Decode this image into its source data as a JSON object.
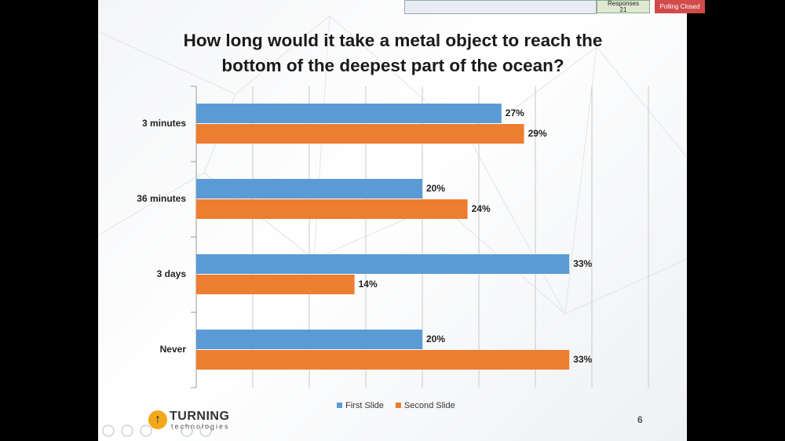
{
  "toolbar": {
    "responses_label": "Responses",
    "responses_count": "21",
    "polling_status": "Polling Closed"
  },
  "chart_data": {
    "type": "bar",
    "orientation": "horizontal",
    "title": "How long would it take a metal object to reach the bottom of the deepest part of the ocean?",
    "categories": [
      "3 minutes",
      "36 minutes",
      "3 days",
      "Never"
    ],
    "series": [
      {
        "name": "First Slide",
        "color": "#5b9bd5",
        "values": [
          27,
          20,
          33,
          20
        ],
        "value_labels": [
          "27%",
          "20%",
          "33%",
          "20%"
        ]
      },
      {
        "name": "Second Slide",
        "color": "#ed7d31",
        "values": [
          29,
          24,
          14,
          33
        ],
        "value_labels": [
          "29%",
          "24%",
          "14%",
          "33%"
        ]
      }
    ],
    "xlim": [
      0,
      40
    ],
    "xticks": [
      0,
      5,
      10,
      15,
      20,
      25,
      30,
      35,
      40
    ],
    "grid": true,
    "legend": "bottom"
  },
  "footer": {
    "logo_name": "TURNING",
    "logo_tagline": "technologies",
    "slide_number": "6"
  }
}
